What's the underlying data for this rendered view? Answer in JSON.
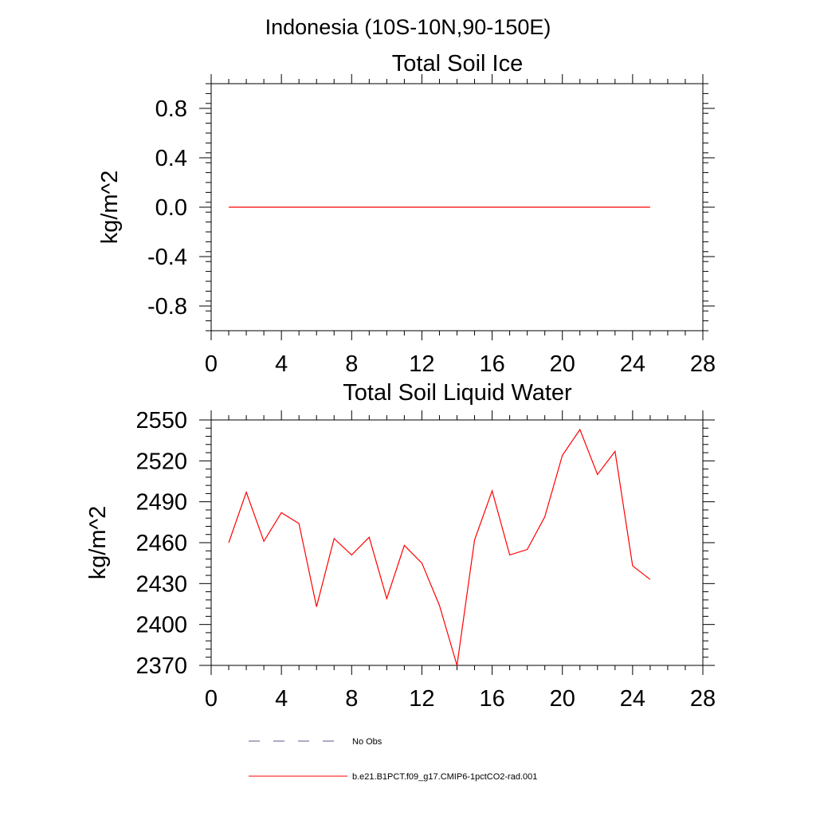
{
  "figure": {
    "title": "Indonesia (10S-10N,90-150E)"
  },
  "chart_data": [
    {
      "type": "line",
      "title": "Total Soil Ice",
      "xlabel": "",
      "ylabel": "kg/m^2",
      "xlim": [
        0,
        28
      ],
      "ylim": [
        -1.0,
        1.0
      ],
      "xticks": [
        0,
        4,
        8,
        12,
        16,
        20,
        24,
        28
      ],
      "yticks": [
        -0.8,
        -0.4,
        0.0,
        0.4,
        0.8
      ],
      "ytick_labels": [
        "-0.8",
        "-0.4",
        "0.0",
        "0.4",
        "0.8"
      ],
      "grid": false,
      "series": [
        {
          "name": "b.e21.B1PCT.f09_g17.CMIP6-1pctCO2-rad.001",
          "color": "#ff0000",
          "x": [
            1,
            2,
            3,
            4,
            5,
            6,
            7,
            8,
            9,
            10,
            11,
            12,
            13,
            14,
            15,
            16,
            17,
            18,
            19,
            20,
            21,
            22,
            23,
            24,
            25
          ],
          "values": [
            0,
            0,
            0,
            0,
            0,
            0,
            0,
            0,
            0,
            0,
            0,
            0,
            0,
            0,
            0,
            0,
            0,
            0,
            0,
            0,
            0,
            0,
            0,
            0,
            0
          ]
        }
      ]
    },
    {
      "type": "line",
      "title": "Total Soil Liquid Water",
      "xlabel": "",
      "ylabel": "kg/m^2",
      "xlim": [
        0,
        28
      ],
      "ylim": [
        2370,
        2550
      ],
      "xticks": [
        0,
        4,
        8,
        12,
        16,
        20,
        24,
        28
      ],
      "yticks": [
        2370,
        2400,
        2430,
        2460,
        2490,
        2520,
        2550
      ],
      "ytick_labels": [
        "2370",
        "2400",
        "2430",
        "2460",
        "2490",
        "2520",
        "2550"
      ],
      "grid": false,
      "series": [
        {
          "name": "b.e21.B1PCT.f09_g17.CMIP6-1pctCO2-rad.001",
          "color": "#ff0000",
          "x": [
            1,
            2,
            3,
            4,
            5,
            6,
            7,
            8,
            9,
            10,
            11,
            12,
            13,
            14,
            15,
            16,
            17,
            18,
            19,
            20,
            21,
            22,
            23,
            24,
            25
          ],
          "values": [
            2460,
            2497,
            2461,
            2482,
            2474,
            2413,
            2463,
            2451,
            2464,
            2419,
            2458,
            2445,
            2414,
            2370,
            2462,
            2498,
            2451,
            2455,
            2479,
            2524,
            2543,
            2510,
            2527,
            2443,
            2433
          ]
        }
      ]
    }
  ],
  "legend": {
    "placement": "bottom",
    "items": [
      {
        "label": "No Obs",
        "color": "#5a5a8a",
        "style": "dashed"
      },
      {
        "label": "b.e21.B1PCT.f09_g17.CMIP6-1pctCO2-rad.001",
        "color": "#ff0000",
        "style": "solid"
      }
    ]
  }
}
